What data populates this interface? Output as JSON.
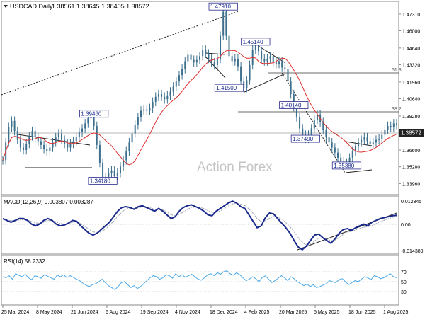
{
  "header": {
    "symbol_line": "USDCAD,Daily",
    "ohlc": "1.38561 1.38645 1.38405 1.38572",
    "watermark": "Action Forex"
  },
  "colors": {
    "candles": "#3b6f8c",
    "sma": "#e03030",
    "macd_line": "#1a2a8c",
    "macd_signal": "#9aa0b0",
    "rsi_line": "#4aa8e8",
    "fib_line": "#6a6a6a",
    "price_badge_bg": "#222222",
    "label_border": "#2a2a8c"
  },
  "x_axis_dates": [
    "25 Mar 2024",
    "8 May 2024",
    "21 Jun 2024",
    "6 Aug 2024",
    "19 Sep 2024",
    "4 Nov 2024",
    "18 Dec 2024",
    "4 Feb 2025",
    "20 Mar 2025",
    "5 May 2025",
    "18 Jun 2025",
    "1 Aug 2025"
  ],
  "price_panel": {
    "y_ticks": [
      "1.47310",
      "1.46000",
      "1.44640",
      "1.43320",
      "1.41960",
      "1.40640",
      "1.39280",
      "1.37960",
      "1.36600",
      "1.35280",
      "1.33960"
    ],
    "current_price": "1.38572",
    "fib_labels": [
      {
        "text": "61.8",
        "price": 1.4275
      },
      {
        "text": "38.2",
        "price": 1.4029
      }
    ],
    "annotations": [
      {
        "text": "1.34180",
        "price": 1.3418,
        "point": 34
      },
      {
        "text": "1.39460",
        "price": 1.3946,
        "point": 31
      },
      {
        "text": "1.47910",
        "price": 1.4791,
        "point": 75
      },
      {
        "text": "1.41500",
        "price": 1.415,
        "point": 77
      },
      {
        "text": "1.45140",
        "price": 1.4514,
        "point": 86
      },
      {
        "text": "1.40140",
        "price": 1.4014,
        "point": 99
      },
      {
        "text": "1.37490",
        "price": 1.3749,
        "point": 103
      },
      {
        "text": "1.35380",
        "price": 1.3538,
        "point": 117
      }
    ]
  },
  "macd_panel": {
    "label": "MACD(12,26,9) 0.003807 0.003287",
    "y_ticks": [
      "0.012345",
      "0.00",
      "-0.014389"
    ]
  },
  "rsi_panel": {
    "label": "RSI(14) 58.2332",
    "y_ticks": [
      "70",
      "50",
      "30"
    ]
  },
  "chart_data": [
    {
      "type": "line",
      "title": "USDCAD,Daily",
      "series": [
        {
          "name": "USDCAD",
          "values": [
            1.358,
            1.372,
            1.384,
            1.389,
            1.381,
            1.374,
            1.368,
            1.366,
            1.371,
            1.377,
            1.381,
            1.376,
            1.373,
            1.37,
            1.367,
            1.365,
            1.368,
            1.372,
            1.376,
            1.379,
            1.374,
            1.371,
            1.368,
            1.371,
            1.373,
            1.376,
            1.38,
            1.383,
            1.387,
            1.391,
            1.394,
            1.385,
            1.37,
            1.356,
            1.342,
            1.345,
            1.348,
            1.35,
            1.346,
            1.348,
            1.353,
            1.358,
            1.365,
            1.372,
            1.379,
            1.386,
            1.392,
            1.397,
            1.398,
            1.397,
            1.399,
            1.404,
            1.408,
            1.41,
            1.408,
            1.406,
            1.409,
            1.412,
            1.416,
            1.42,
            1.425,
            1.43,
            1.436,
            1.441,
            1.437,
            1.435,
            1.437,
            1.44,
            1.445,
            1.442,
            1.438,
            1.435,
            1.433,
            1.438,
            1.456,
            1.475,
            1.456,
            1.44,
            1.436,
            1.438,
            1.432,
            1.42,
            1.415,
            1.421,
            1.433,
            1.445,
            1.451,
            1.444,
            1.438,
            1.436,
            1.438,
            1.44,
            1.435,
            1.434,
            1.436,
            1.431,
            1.43,
            1.42,
            1.41,
            1.4,
            1.392,
            1.383,
            1.378,
            1.375,
            1.378,
            1.383,
            1.39,
            1.394,
            1.388,
            1.382,
            1.376,
            1.372,
            1.368,
            1.364,
            1.36,
            1.357,
            1.355,
            1.356,
            1.36,
            1.365,
            1.369,
            1.372,
            1.374,
            1.376,
            1.373,
            1.371,
            1.372,
            1.374,
            1.375,
            1.378,
            1.382,
            1.385,
            1.384,
            1.387,
            1.386
          ]
        }
      ],
      "ylim": [
        1.332,
        1.482
      ]
    },
    {
      "type": "line",
      "title": "MACD(12,26,9)",
      "series": [
        {
          "name": "MACD",
          "values": [
            0.002,
            0.001,
            0.0,
            0.001,
            0.002,
            0.002,
            0.001,
            -0.001,
            -0.002,
            -0.001,
            0.001,
            0.002,
            0.001,
            -0.001,
            -0.002,
            -0.0015,
            -0.0005,
            0.001,
            0.0005,
            -0.002,
            -0.004,
            -0.006,
            -0.007,
            -0.006,
            -0.004,
            -0.002,
            0.0,
            0.003,
            0.006,
            0.008,
            0.0085,
            0.008,
            0.007,
            0.0085,
            0.009,
            0.008,
            0.007,
            0.006,
            0.0075,
            0.006,
            0.004,
            0.002,
            0.003,
            0.006,
            0.008,
            0.009,
            0.0095,
            0.0085,
            0.0075,
            0.006,
            0.004,
            0.0035,
            0.006,
            0.0075,
            0.009,
            0.0105,
            0.0115,
            0.0105,
            0.0085,
            0.0075,
            0.004,
            0.0005,
            -0.003,
            -0.002,
            0.0025,
            0.005,
            0.0045,
            0.002,
            -0.0005,
            -0.003,
            -0.006,
            -0.01,
            -0.0135,
            -0.015,
            -0.013,
            -0.01,
            -0.007,
            -0.0065,
            -0.0085,
            -0.01,
            -0.0115,
            -0.009,
            -0.006,
            -0.004,
            -0.0035,
            -0.0045,
            -0.003,
            -0.002,
            -0.001,
            -0.002,
            0.0,
            0.001,
            0.002,
            0.0025,
            0.003,
            0.0035,
            0.0038
          ]
        },
        {
          "name": "Signal",
          "values": [
            0.0015,
            0.0012,
            0.0008,
            0.0009,
            0.0012,
            0.0014,
            0.0011,
            0.0004,
            -0.0004,
            -0.0006,
            0.0,
            0.0009,
            0.0008,
            0.0002,
            -0.0007,
            -0.001,
            -0.0008,
            0.0,
            0.0003,
            -0.0008,
            -0.0022,
            -0.0038,
            -0.0052,
            -0.0058,
            -0.0052,
            -0.0038,
            -0.0018,
            0.0006,
            0.0032,
            0.0055,
            0.0072,
            0.0078,
            0.0075,
            0.0078,
            0.0083,
            0.0082,
            0.0078,
            0.0071,
            0.0072,
            0.0067,
            0.0056,
            0.0041,
            0.0035,
            0.0042,
            0.0056,
            0.007,
            0.0081,
            0.0083,
            0.0081,
            0.0074,
            0.0063,
            0.0053,
            0.0054,
            0.0062,
            0.0074,
            0.0088,
            0.01,
            0.0103,
            0.0098,
            0.0091,
            0.0073,
            0.0048,
            0.0019,
            0.0003,
            0.0008,
            0.0022,
            0.0031,
            0.0027,
            0.0016,
            -0.0002,
            -0.0024,
            -0.0052,
            -0.0084,
            -0.0112,
            -0.0124,
            -0.0119,
            -0.0103,
            -0.0088,
            -0.0087,
            -0.0092,
            -0.0101,
            -0.0097,
            -0.0083,
            -0.0067,
            -0.0054,
            -0.005,
            -0.0043,
            -0.0035,
            -0.0027,
            -0.0025,
            -0.0017,
            -0.0008,
            0.0002,
            0.0011,
            0.0019,
            0.0026,
            0.0033
          ]
        }
      ],
      "ylim": [
        -0.017,
        0.0135
      ]
    },
    {
      "type": "line",
      "title": "RSI(14)",
      "series": [
        {
          "name": "RSI",
          "values": [
            60,
            58,
            62,
            55,
            66,
            63,
            60,
            65,
            58,
            54,
            62,
            60,
            57,
            64,
            61,
            58,
            55,
            63,
            60,
            64,
            58,
            62,
            59,
            55,
            52,
            47,
            43,
            40,
            44,
            46,
            50,
            55,
            48,
            42,
            38,
            34,
            40,
            48,
            50,
            44,
            38,
            42,
            36,
            40,
            46,
            52,
            58,
            62,
            60,
            55,
            58,
            64,
            62,
            57,
            66,
            60,
            64,
            59,
            62,
            65,
            60,
            55,
            53,
            58,
            64,
            66,
            62,
            68,
            65,
            70,
            72,
            66,
            63,
            68,
            64,
            58,
            52,
            55,
            60,
            56,
            50,
            58,
            62,
            55,
            48,
            52,
            57,
            62,
            58,
            52,
            60,
            56,
            50,
            46,
            42,
            45,
            40,
            44,
            38,
            40,
            43,
            46,
            52,
            50,
            48,
            54,
            56,
            50,
            44,
            48,
            52,
            50,
            55,
            60,
            58,
            54,
            62,
            60,
            56,
            58,
            62,
            66,
            60,
            58
          ]
        }
      ],
      "ylim": [
        22,
        80
      ]
    }
  ]
}
